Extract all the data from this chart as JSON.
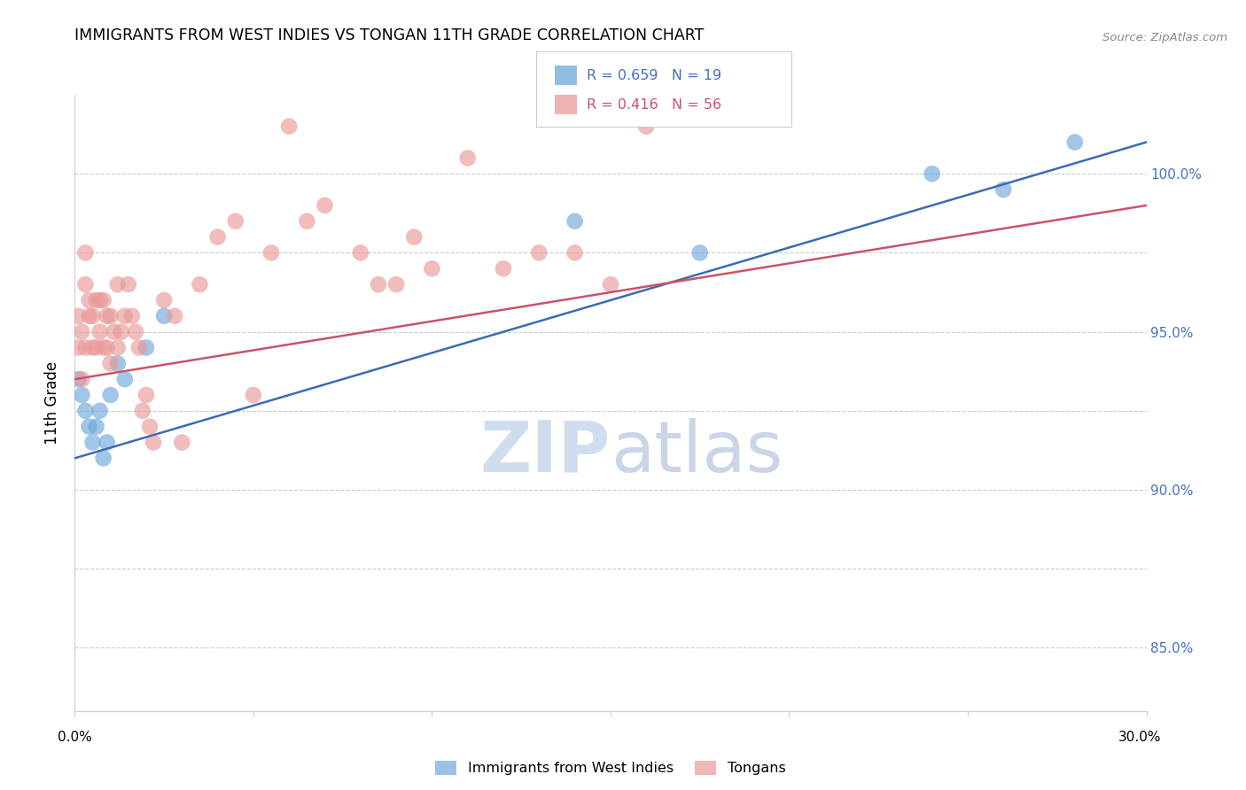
{
  "title": "IMMIGRANTS FROM WEST INDIES VS TONGAN 11TH GRADE CORRELATION CHART",
  "source": "Source: ZipAtlas.com",
  "ylabel": "11th Grade",
  "xlim": [
    0.0,
    0.3
  ],
  "ylim": [
    83.0,
    102.5
  ],
  "blue_R": 0.659,
  "blue_N": 19,
  "pink_R": 0.416,
  "pink_N": 56,
  "blue_scatter_x": [
    0.001,
    0.002,
    0.003,
    0.004,
    0.005,
    0.006,
    0.007,
    0.008,
    0.009,
    0.01,
    0.012,
    0.014,
    0.02,
    0.025,
    0.14,
    0.175,
    0.24,
    0.26,
    0.28
  ],
  "blue_scatter_y": [
    93.5,
    93.0,
    92.5,
    92.0,
    91.5,
    92.0,
    92.5,
    91.0,
    91.5,
    93.0,
    94.0,
    93.5,
    94.5,
    95.5,
    98.5,
    97.5,
    100.0,
    99.5,
    101.0
  ],
  "pink_scatter_x": [
    0.001,
    0.001,
    0.002,
    0.002,
    0.003,
    0.003,
    0.003,
    0.004,
    0.004,
    0.005,
    0.005,
    0.006,
    0.006,
    0.007,
    0.007,
    0.008,
    0.008,
    0.009,
    0.009,
    0.01,
    0.01,
    0.011,
    0.012,
    0.012,
    0.013,
    0.014,
    0.015,
    0.016,
    0.017,
    0.018,
    0.019,
    0.02,
    0.021,
    0.022,
    0.025,
    0.028,
    0.03,
    0.035,
    0.04,
    0.045,
    0.05,
    0.055,
    0.06,
    0.065,
    0.07,
    0.08,
    0.085,
    0.09,
    0.095,
    0.1,
    0.11,
    0.12,
    0.13,
    0.14,
    0.15,
    0.16
  ],
  "pink_scatter_y": [
    94.5,
    95.5,
    93.5,
    95.0,
    97.5,
    96.5,
    94.5,
    95.5,
    96.0,
    95.5,
    94.5,
    96.0,
    94.5,
    96.0,
    95.0,
    96.0,
    94.5,
    94.5,
    95.5,
    95.5,
    94.0,
    95.0,
    96.5,
    94.5,
    95.0,
    95.5,
    96.5,
    95.5,
    95.0,
    94.5,
    92.5,
    93.0,
    92.0,
    91.5,
    96.0,
    95.5,
    91.5,
    96.5,
    98.0,
    98.5,
    93.0,
    97.5,
    101.5,
    98.5,
    99.0,
    97.5,
    96.5,
    96.5,
    98.0,
    97.0,
    100.5,
    97.0,
    97.5,
    97.5,
    96.5,
    101.5
  ],
  "blue_line_x": [
    0.0,
    0.3
  ],
  "blue_line_y": [
    91.0,
    101.0
  ],
  "pink_line_x": [
    0.0,
    0.3
  ],
  "pink_line_y": [
    93.5,
    99.0
  ],
  "y_grid_vals": [
    85.0,
    87.5,
    90.0,
    92.5,
    95.0,
    97.5,
    100.0
  ],
  "right_ytick_vals": [
    85.0,
    90.0,
    95.0,
    100.0
  ],
  "right_ytick_labels": [
    "85.0%",
    "90.0%",
    "95.0%",
    "100.0%"
  ],
  "blue_color": "#6fa8dc",
  "pink_color": "#ea9999",
  "blue_line_color": "#3d6bb5",
  "pink_line_color": "#c9536a",
  "background_color": "#ffffff",
  "legend_blue_text_color": "#4472c4",
  "legend_pink_text_color": "#c9536a",
  "right_axis_color": "#4472c4"
}
